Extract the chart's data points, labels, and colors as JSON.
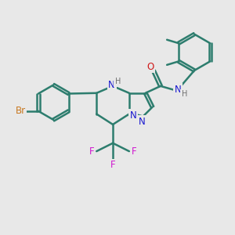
{
  "bg_color": "#e8e8e8",
  "bond_color": "#2d7d6e",
  "bond_width": 1.8,
  "atom_colors": {
    "Br": "#c87820",
    "N": "#1818d0",
    "O": "#d01818",
    "F": "#d018d0",
    "H_label": "#707070",
    "C": "#2d7d6e"
  },
  "font_size": 8.5
}
